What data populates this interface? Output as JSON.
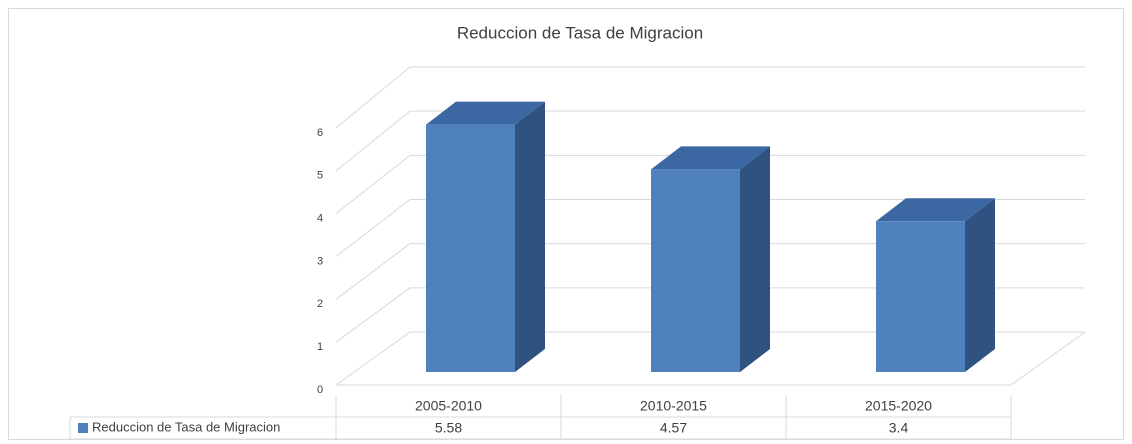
{
  "chart_data": {
    "type": "bar",
    "title": "Reduccion de Tasa de Migracion",
    "categories": [
      "2005-2010",
      "2010-2015",
      "2015-2020"
    ],
    "series": [
      {
        "name": "Reduccion de Tasa de Migracion",
        "color": "#4f81bd",
        "values": [
          5.58,
          4.57,
          3.4
        ]
      }
    ],
    "ylim": [
      0,
      6
    ],
    "yticks": [
      0,
      1,
      2,
      3,
      4,
      5,
      6
    ],
    "grid": true
  }
}
